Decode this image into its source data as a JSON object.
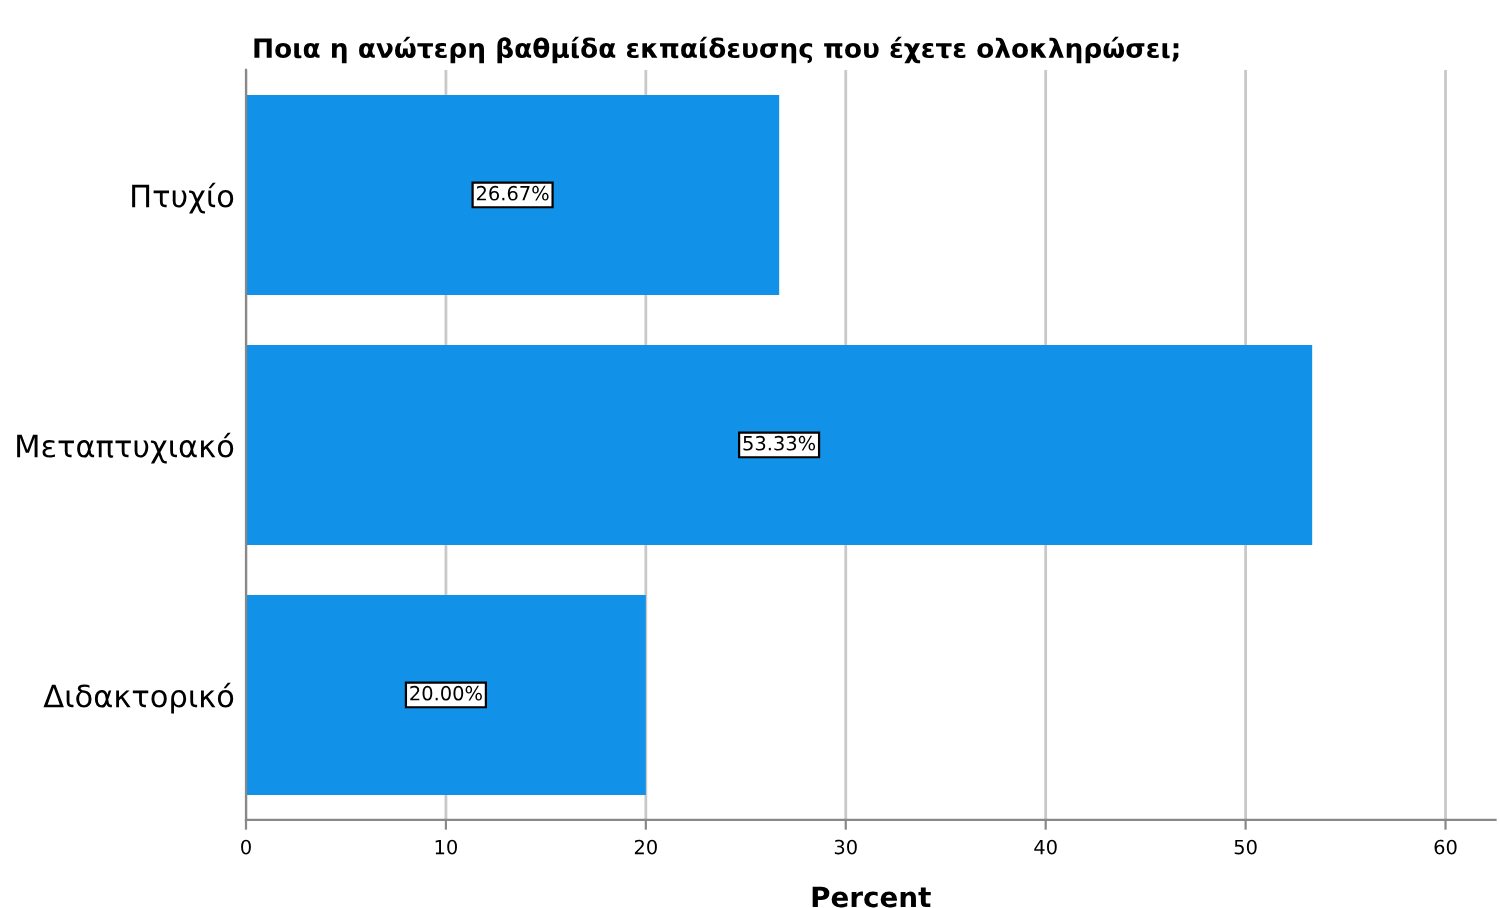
{
  "chart_data": {
    "type": "bar",
    "orientation": "horizontal",
    "title": "Ποια η ανώτερη βαθμίδα εκπαίδευσης που έχετε ολοκληρώσει;",
    "xlabel": "Percent",
    "categories": [
      "Πτυχίο",
      "Μεταπτυχιακό",
      "Διδακτορικό"
    ],
    "values": [
      26.67,
      53.33,
      20.0
    ],
    "value_labels": [
      "26.67%",
      "53.33%",
      "20.00%"
    ],
    "color": "#1192e8",
    "xlim": [
      0,
      62.5
    ],
    "xticks": [
      0,
      10,
      20,
      30,
      40,
      50,
      60
    ],
    "grid": "x"
  }
}
